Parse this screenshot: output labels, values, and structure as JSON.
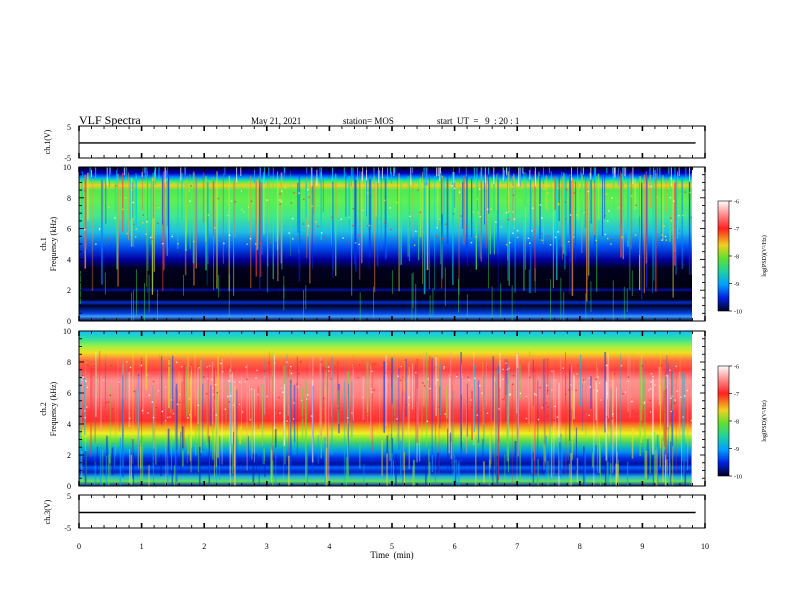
{
  "header": {
    "title": "VLF Spectra",
    "date": "May 21, 2021",
    "station": "station= MOS",
    "start": "start  UT  =   9  : 20 : 1"
  },
  "chart_data": [
    {
      "type": "line",
      "name": "ch1-waveform",
      "ylabel": "ch.1(V)",
      "ylim": [
        -5,
        5
      ],
      "yticks": [
        "5",
        "-5"
      ],
      "x": [
        0,
        10
      ],
      "y": [
        -0.3,
        -0.3
      ]
    },
    {
      "type": "heatmap",
      "name": "ch1-spectrogram",
      "ylabel": "ch.1",
      "ylabel2": "Frequency (kHz)",
      "ylim": [
        0,
        10
      ],
      "yticks": [
        "0",
        "2",
        "4",
        "6",
        "8",
        "10"
      ],
      "xlim": [
        0,
        9.85
      ],
      "colorbar": {
        "label": "log(PSD)(V²/Hz)",
        "range": [
          -10,
          -6
        ],
        "ticks": [
          "-6",
          "-7",
          "-8",
          "-9",
          "-10"
        ]
      },
      "emission_band_khz": [
        3.2,
        9.2
      ],
      "peak_khz": 8.6
    },
    {
      "type": "heatmap",
      "name": "ch2-spectrogram",
      "ylabel": "ch.2",
      "ylabel2": "Frequency (kHz)",
      "ylim": [
        0,
        10
      ],
      "yticks": [
        "0",
        "2",
        "4",
        "6",
        "8",
        "10"
      ],
      "xlim": [
        0,
        9.85
      ],
      "colorbar": {
        "label": "log(PSD)(V²/Hz)",
        "range": [
          -10,
          -6
        ],
        "ticks": [
          "-6",
          "-7",
          "-8",
          "-9",
          "-10"
        ]
      },
      "emission_band_khz": [
        2.5,
        10
      ],
      "peak_khz": 6
    },
    {
      "type": "line",
      "name": "ch3-waveform",
      "ylabel": "ch.3(V)",
      "ylim": [
        -5,
        5
      ],
      "yticks": [
        "5",
        "-5"
      ],
      "x": [
        0,
        10
      ],
      "y": [
        -0.3,
        -0.3
      ]
    }
  ],
  "xaxis": {
    "label": "Time  (min)",
    "ticks": [
      "0",
      "1",
      "2",
      "3",
      "4",
      "5",
      "6",
      "7",
      "8",
      "9",
      "10"
    ],
    "xlim": [
      0,
      10
    ]
  }
}
